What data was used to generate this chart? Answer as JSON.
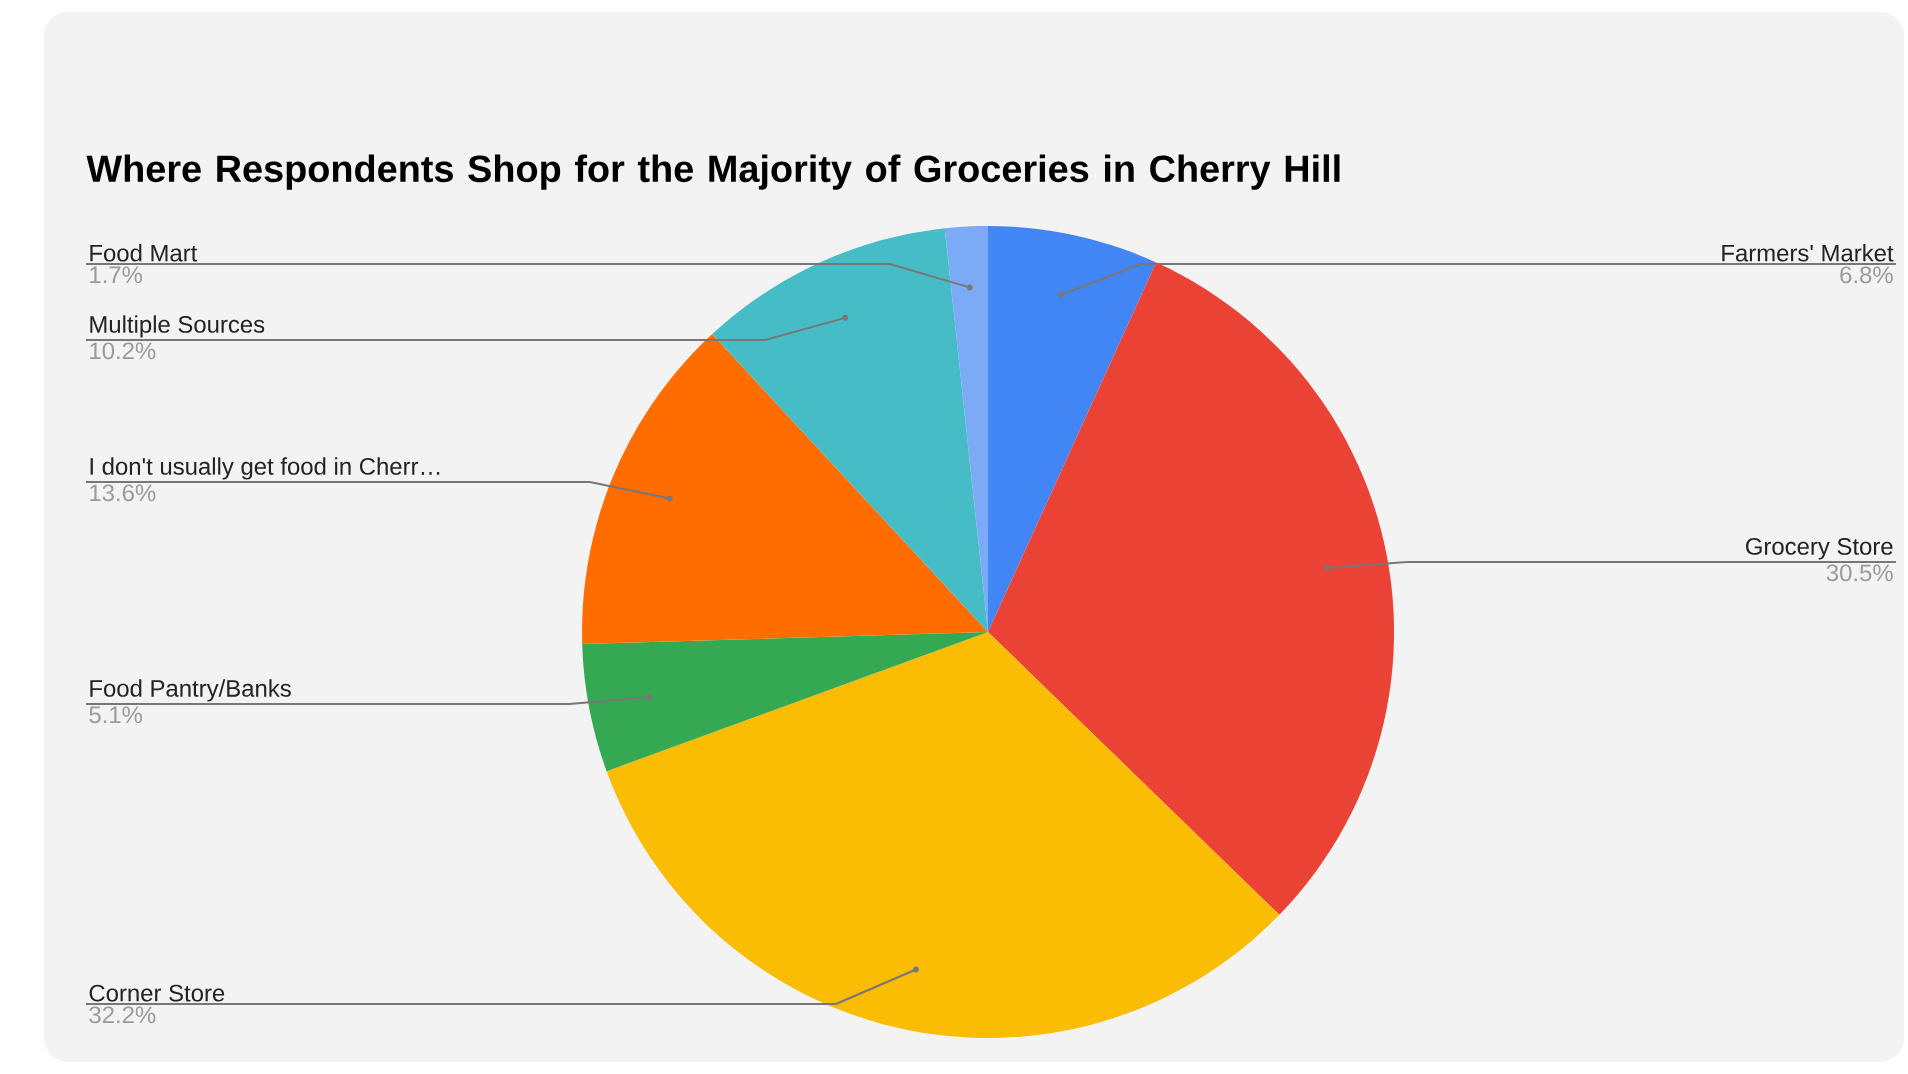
{
  "chart_data": {
    "type": "pie",
    "title": "Where Respondents Shop for the Majority of Groceries in Cherry Hill",
    "categories": [
      "Farmers' Market",
      "Grocery Store",
      "Corner Store",
      "Food Pantry/Banks",
      "I don't usually get food in Cherr…",
      "Multiple Sources",
      "Food Mart"
    ],
    "values": [
      6.8,
      30.5,
      32.2,
      5.1,
      13.6,
      10.2,
      1.7
    ],
    "value_labels": [
      "6.8%",
      "30.5%",
      "32.2%",
      "5.1%",
      "13.6%",
      "10.2%",
      "1.7%"
    ],
    "colors": [
      "#4285f4",
      "#ea4335",
      "#fbbc04",
      "#34a853",
      "#ff6d01",
      "#46bdc6",
      "#7baaf7"
    ]
  }
}
